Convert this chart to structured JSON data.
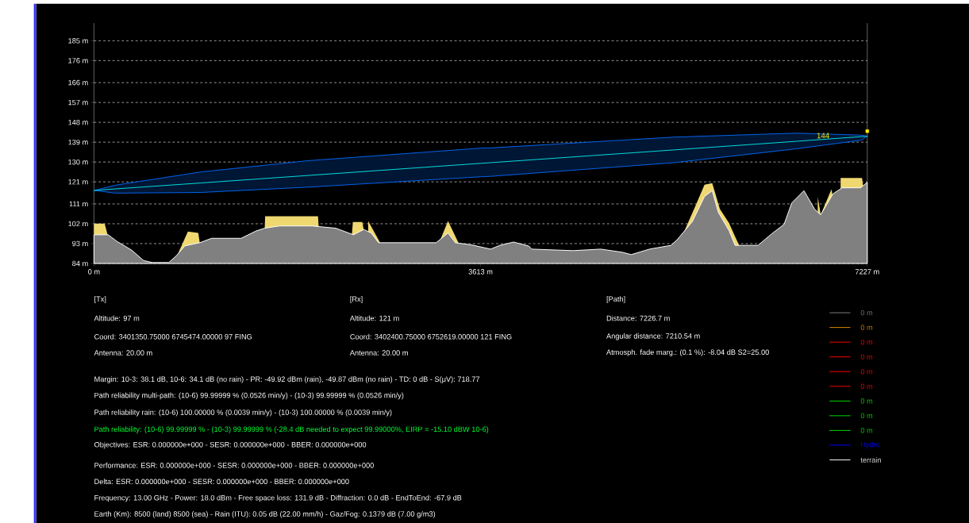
{
  "chart_data": {
    "type": "area",
    "xlim": [
      0,
      7227
    ],
    "ylim": [
      84,
      193
    ],
    "xticks": [
      {
        "value": 0,
        "label": "0 m"
      },
      {
        "value": 3613,
        "label": "3613 m"
      },
      {
        "value": 7227,
        "label": "7227 m"
      }
    ],
    "yticks": [
      {
        "value": 84,
        "label": "84 m"
      },
      {
        "value": 93,
        "label": "93 m"
      },
      {
        "value": 102,
        "label": "102 m"
      },
      {
        "value": 111,
        "label": "111 m"
      },
      {
        "value": 121,
        "label": "121 m"
      },
      {
        "value": 130,
        "label": "130 m"
      },
      {
        "value": 139,
        "label": "139 m"
      },
      {
        "value": 148,
        "label": "148 m"
      },
      {
        "value": 157,
        "label": "157 m"
      },
      {
        "value": 166,
        "label": "166 m"
      },
      {
        "value": 176,
        "label": "176 m"
      },
      {
        "value": 185,
        "label": "185 m"
      }
    ],
    "grid": "y",
    "legend": "bottom right",
    "series": [
      {
        "color": "#f0d870",
        "x": [
          0,
          100,
          125,
          126,
          782,
          878,
          975,
          989,
          990,
          1596,
          1600,
          2094,
          2100,
          2101,
          2411,
          2420,
          2508,
          2520,
          2521,
          2563,
          2674,
          2675,
          3226,
          3309,
          3406,
          3407,
          5435,
          5520,
          5620,
          5706,
          5778,
          5850,
          5935,
          5992,
          6030,
          6031,
          6764,
          6792,
          6892,
          6900,
          6901,
          6978,
          7178,
          7190
        ],
        "values": [
          102.1,
          102.1,
          97.5,
          null,
          88,
          98.5,
          97.8,
          93.4,
          null,
          100,
          105.4,
          105.4,
          101,
          null,
          97.5,
          102.8,
          102.8,
          99.5,
          null,
          103.2,
          93.4,
          null,
          93.4,
          103.2,
          93.4,
          null,
          93,
          98.9,
          110,
          119.7,
          120.4,
          108.6,
          102.3,
          96.1,
          92.2,
          null,
          114.2,
          106.1,
          117.6,
          115.6,
          null,
          122.8,
          122.8,
          118.3
        ]
      },
      {
        "name": "terrain",
        "color": "#ffffff",
        "x": [
          0,
          133,
          215,
          354,
          464,
          547,
          699,
          768,
          851,
          989,
          1099,
          1375,
          1514,
          1596,
          1734,
          2038,
          2259,
          2425,
          2522,
          2591,
          2660,
          3198,
          3309,
          3378,
          3530,
          3707,
          3793,
          3921,
          4064,
          4092,
          4478,
          4735,
          4935,
          5021,
          5192,
          5392,
          5449,
          5592,
          5706,
          5778,
          5835,
          5935,
          5992,
          6206,
          6335,
          6449,
          6521,
          6635,
          6735,
          6792,
          6907,
          6992,
          7164,
          7227
        ],
        "values": [
          97,
          97,
          94,
          90,
          85.3,
          84.4,
          84.4,
          87.4,
          92,
          93.4,
          95.4,
          95.4,
          98.7,
          100,
          101,
          101,
          100,
          97,
          99.4,
          97.8,
          93.4,
          93.4,
          97.8,
          93.4,
          92.4,
          90.5,
          92.2,
          93.7,
          91.9,
          90.5,
          89.8,
          90.5,
          89.1,
          88,
          90.5,
          92.2,
          94.7,
          103,
          114.4,
          117,
          107.2,
          98.9,
          92.2,
          92.2,
          97.5,
          101.7,
          111.4,
          117,
          108.6,
          106.1,
          115.6,
          118.3,
          118.3,
          120.8
        ]
      },
      {
        "type": "line",
        "color": "#00e0e0",
        "x": [
          0,
          200,
          1000,
          2000,
          3613,
          3707,
          5421,
          6564,
          7170,
          7227
        ],
        "values": [
          117.1,
          117.8,
          120.5,
          123.9,
          129.4,
          129.7,
          135.5,
          139.4,
          141.5,
          141.7
        ],
        "upper": [
          117.1,
          119.5,
          125.5,
          130.6,
          136.3,
          136.4,
          141.3,
          143.1,
          142.2,
          141.7
        ],
        "lower": [
          117.1,
          115.9,
          116.2,
          118.6,
          123.3,
          123.5,
          129.7,
          136,
          139.9,
          141.7
        ]
      },
      {
        "type": "scatter",
        "color": "#fff200",
        "x": [
          7227
        ],
        "values": [
          144
        ]
      },
      {
        "type": "line",
        "name": "0 m",
        "color": "#808080"
      },
      {
        "type": "line",
        "name": "0 m",
        "color": "#e08a00"
      },
      {
        "type": "line",
        "name": "0 m",
        "color": "#ff0000"
      },
      {
        "type": "line",
        "name": "0 m",
        "color": "#ff0000"
      },
      {
        "type": "line",
        "name": "0 m",
        "color": "#ff0000"
      },
      {
        "type": "line",
        "name": "0 m",
        "color": "#ff0000"
      },
      {
        "type": "line",
        "name": "0 m",
        "color": "#00e000"
      },
      {
        "type": "line",
        "name": "0 m",
        "color": "#00e000"
      },
      {
        "type": "line",
        "name": "0 m",
        "color": "#00e000"
      },
      {
        "type": "line",
        "name": "Hydro",
        "color": "#0000ff"
      }
    ],
    "annotations": [
      "144",
      "[Tx]",
      "Altitude: 97 m",
      "Coord: 3401350.75000 6745474.00000 97 FING",
      "Antenna: 20.00 m",
      "[Rx]",
      "Altitude: 121 m",
      "Coord: 3402400.75000 6752619.00000 121 FING",
      "Antenna: 20.00 m",
      "[Path]",
      "Distance: 7226.7 m",
      "Angular distance: 7210.54 m",
      "Atmosph. fade marg.: (0.1 %): -8.04 dB S2=25.00",
      "Margin: 10-3: 38.1 dB, 10-6: 34.1 dB (no rain) - PR: -49.92 dBm (rain), -49.87 dBm (no rain) - TD: 0 dB - S(μV): 718.77",
      "Path reliability multi-path: (10-6) 99.99999 % (0.0526 min/y) - (10-3) 99.99999 % (0.0526 min/y)",
      "Path reliability rain: (10-6) 100.00000 % (0.0039 min/y) - (10-3) 100.00000 % (0.0039 min/y)",
      "Path reliability: (10-6) 99.99999 % - (10-3) 99.99999 % (-28.4 dB needed to expect 99.99000%, EIRP = -15.10 dBW 10-6)",
      "Objectives: ESR: 0.000000e+000 - SESR: 0.000000e+000 - BBER: 0.000000e+000",
      "Performance: ESR: 0.000000e+000 - SESR: 0.000000e+000 - BBER: 0.000000e+000",
      "Delta: ESR: 0.000000e+000 - SESR: 0.000000e+000 - BBER: 0.000000e+000",
      "Frequency: 13.00 GHz - Power: 18.0 dBm - Free space loss: 131.9 dB - Diffraction: 0.0 dB - EndToEnd: -67.9 dB",
      "Earth (Km): 8500 (land) 8500 (sea) - Rain (ITU): 0.05 dB (22.00 mm/h) - Gaz/Fog: 0.1379 dB (7.00 g/m3)"
    ]
  }
}
